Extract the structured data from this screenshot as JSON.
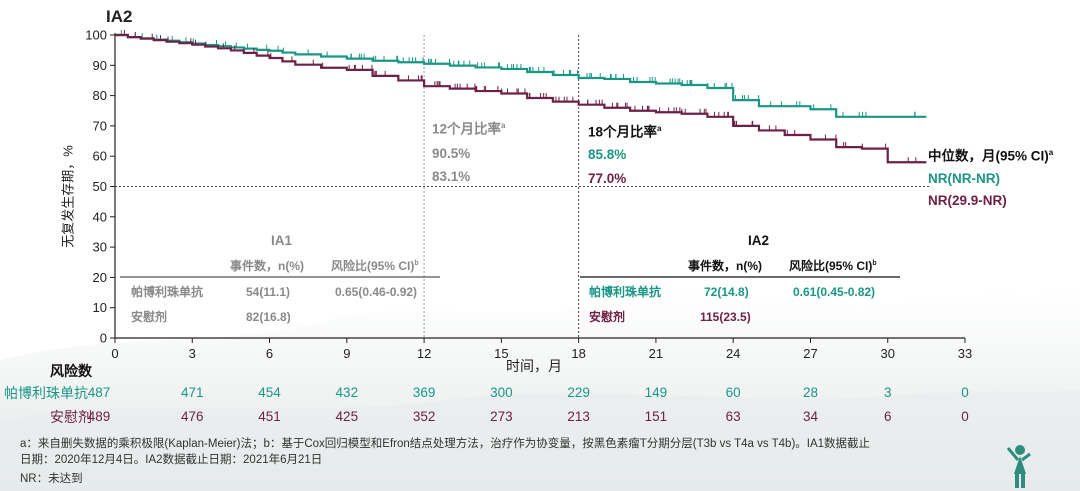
{
  "chart_data": {
    "type": "line",
    "title": "IA2",
    "xlabel": "时间，月",
    "ylabel": "无复发生存期，%",
    "xlim": [
      0,
      33
    ],
    "ylim": [
      0,
      100
    ],
    "xticks": [
      0,
      3,
      6,
      9,
      12,
      15,
      18,
      21,
      24,
      27,
      30,
      33
    ],
    "yticks": [
      0,
      10,
      20,
      30,
      40,
      50,
      60,
      70,
      80,
      90,
      100
    ],
    "reference_lines": {
      "x": [
        12,
        18
      ],
      "y": [
        50
      ]
    },
    "series": [
      {
        "name": "帕博利珠单抗",
        "color": "#1a9686",
        "x": [
          0,
          0.5,
          1,
          1.5,
          2,
          2.5,
          3,
          3.5,
          4,
          4.5,
          5,
          5.5,
          6,
          6.5,
          7,
          8,
          9,
          10,
          11,
          12,
          13,
          14,
          15,
          16,
          17,
          18,
          19,
          20,
          21,
          22,
          23,
          24,
          25,
          26,
          27,
          28,
          29,
          30,
          31.5
        ],
        "y": [
          100,
          99.3,
          98.9,
          98.5,
          98.1,
          97.6,
          97.2,
          96.7,
          96.3,
          95.9,
          95.5,
          95.1,
          94.8,
          94.2,
          93.6,
          92.9,
          92.2,
          91.5,
          91.0,
          90.5,
          89.9,
          89.3,
          88.8,
          87.8,
          86.8,
          85.8,
          85.5,
          84.5,
          84.0,
          83.5,
          82.5,
          78.5,
          76.5,
          76.5,
          75.5,
          73.0,
          73.0,
          73.0,
          73.0
        ]
      },
      {
        "name": "安慰剂",
        "color": "#6e2146",
        "x": [
          0,
          0.5,
          1,
          1.5,
          2,
          2.5,
          3,
          3.5,
          4,
          4.5,
          5,
          5.5,
          6,
          6.5,
          7,
          8,
          9,
          10,
          11,
          12,
          13,
          14,
          15,
          16,
          17,
          18,
          19,
          20,
          21,
          22,
          23,
          24,
          25,
          26,
          27,
          28,
          29,
          30,
          31.5
        ],
        "y": [
          100,
          99.3,
          98.8,
          98.3,
          97.8,
          97.3,
          96.8,
          96.2,
          95.6,
          94.9,
          94.1,
          93.2,
          92.4,
          91.3,
          90.2,
          89.2,
          88.5,
          86.5,
          85.0,
          83.1,
          82.3,
          81.5,
          80.7,
          79.2,
          78.0,
          77.0,
          76.0,
          75.0,
          74.5,
          74.0,
          73.0,
          70.0,
          68.5,
          67.0,
          65.5,
          63.0,
          62.5,
          58.0,
          58.0
        ]
      }
    ],
    "risk_table": {
      "title": "风险数",
      "rows": [
        {
          "label": "帕博利珠单抗",
          "values": [
            "487",
            "471",
            "454",
            "432",
            "369",
            "300",
            "229",
            "149",
            "60",
            "28",
            "3",
            "0"
          ]
        },
        {
          "label": "安慰剂",
          "values": [
            "489",
            "476",
            "451",
            "425",
            "352",
            "273",
            "213",
            "151",
            "63",
            "34",
            "6",
            "0"
          ]
        }
      ]
    },
    "annotations": {
      "rate12": {
        "title": "12个月比率",
        "sup": "a",
        "pembro": "90.5%",
        "placebo": "83.1%"
      },
      "rate18": {
        "title": "18个月比率",
        "sup": "a",
        "pembro": "85.8%",
        "placebo": "77.0%"
      },
      "median": {
        "title": "中位数，月(95% CI)",
        "sup": "a",
        "pembro": "NR(NR-NR)",
        "placebo": "NR(29.9-NR)"
      }
    },
    "hr_tables": {
      "ia1": {
        "title": "IA1",
        "col_events": "事件数，n(%)",
        "col_hr": "风险比(95% CI)",
        "col_hr_sup": "b",
        "rows": [
          {
            "arm": "帕博利珠单抗",
            "events": "54(11.1)",
            "hr": "0.65(0.46-0.92)"
          },
          {
            "arm": "安慰剂",
            "events": "82(16.8)",
            "hr": ""
          }
        ]
      },
      "ia2": {
        "title": "IA2",
        "col_events": "事件数，n(%)",
        "col_hr": "风险比(95% CI)",
        "col_hr_sup": "b",
        "rows": [
          {
            "arm": "帕博利珠单抗",
            "events": "72(14.8)",
            "hr": "0.61(0.45-0.82)"
          },
          {
            "arm": "安慰剂",
            "events": "115(23.5)",
            "hr": ""
          }
        ]
      }
    }
  },
  "footnotes": {
    "line1": "a：来自删失数据的乘积极限(Kaplan-Meier)法；b：基于Cox回归模型和Efron结点处理方法，治疗作为协变量，按黑色素瘤T分期分层(T3b vs T4a vs T4b)。IA1数据截止",
    "line2": "日期：2020年12月4日。IA2数据截止日期：2021年6月21日",
    "line3": "NR：未达到"
  },
  "logo_icon": "figure-silhouette-icon"
}
